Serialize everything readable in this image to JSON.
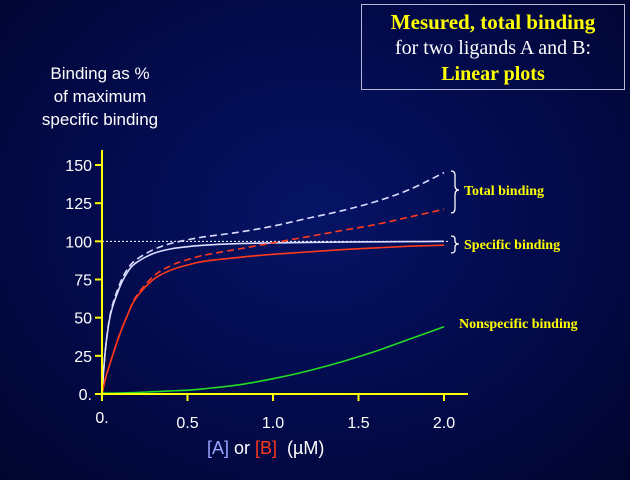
{
  "title_box": {
    "line1": "Mesured, total binding",
    "line2": "for two ligands A and B:",
    "line3": "Linear plots"
  },
  "y_axis_label": [
    "Binding as %",
    "of maximum",
    "specific binding"
  ],
  "x_axis_label": {
    "part_a": "[A]",
    "or": " or ",
    "part_b": "[B]",
    "unit": "  (µM)"
  },
  "annotations": {
    "total": "Total binding",
    "specific": "Specific binding",
    "nonspecific": "Nonspecific binding"
  },
  "colors": {
    "background": "#030a4a",
    "axis": "#ffff00",
    "ligand_a": "#dcdcff",
    "ligand_b": "#ff3a1c",
    "nonspecific": "#22dd22",
    "annotation_text": "#ffff00"
  },
  "chart_data": {
    "type": "line",
    "xlabel": "[A] or [B]  (µM)",
    "ylabel": "Binding as % of maximum specific binding",
    "xlim": [
      0,
      2.0
    ],
    "ylim": [
      0,
      150
    ],
    "x_ticks": [
      {
        "v": 0,
        "label": "0."
      },
      {
        "v": 0.5,
        "label": "0.5"
      },
      {
        "v": 1.0,
        "label": "1.0"
      },
      {
        "v": 1.5,
        "label": "1.5"
      },
      {
        "v": 2.0,
        "label": "2.0"
      }
    ],
    "y_ticks": [
      {
        "v": 0,
        "label": "0."
      },
      {
        "v": 25,
        "label": "25"
      },
      {
        "v": 50,
        "label": "50"
      },
      {
        "v": 75,
        "label": "75"
      },
      {
        "v": 100,
        "label": "100"
      },
      {
        "v": 125,
        "label": "125"
      },
      {
        "v": 150,
        "label": "150"
      }
    ],
    "reference_line": 100,
    "x": [
      0,
      0.02,
      0.05,
      0.1,
      0.15,
      0.2,
      0.3,
      0.4,
      0.5,
      0.6,
      0.8,
      1.0,
      1.2,
      1.4,
      1.6,
      1.8,
      2.0
    ],
    "series": [
      {
        "key": "A_specific",
        "color": "#dcdcff",
        "dash": "solid",
        "values": [
          0,
          29,
          52,
          69,
          80,
          86,
          92,
          95,
          96.5,
          97.5,
          98.5,
          99,
          99.3,
          99.5,
          99.7,
          99.8,
          100
        ]
      },
      {
        "key": "A_total",
        "color": "#dcdcff",
        "dash": "dashed",
        "values": [
          0,
          29,
          53,
          71,
          82,
          88,
          94.5,
          98.5,
          101,
          103,
          106,
          110,
          115,
          120,
          126,
          134,
          145
        ]
      },
      {
        "key": "B_specific",
        "color": "#ff3a1c",
        "dash": "solid",
        "values": [
          0,
          10,
          21,
          38,
          52,
          63,
          75,
          81,
          84.5,
          87,
          89.5,
          91.5,
          93,
          94.5,
          95.7,
          96.8,
          97.5
        ]
      },
      {
        "key": "B_total",
        "color": "#ff3a1c",
        "dash": "dashed",
        "values": [
          0,
          10,
          21,
          38,
          52,
          64,
          77,
          84,
          88,
          91,
          95,
          99,
          103,
          107,
          111,
          116,
          121
        ]
      },
      {
        "key": "nonspecific",
        "color": "#22dd22",
        "dash": "solid",
        "values": [
          0.5,
          0.5,
          0.5,
          0.6,
          0.8,
          1,
          1.5,
          2,
          2.5,
          3.5,
          6,
          10,
          15,
          21,
          28,
          36,
          44
        ]
      }
    ]
  }
}
